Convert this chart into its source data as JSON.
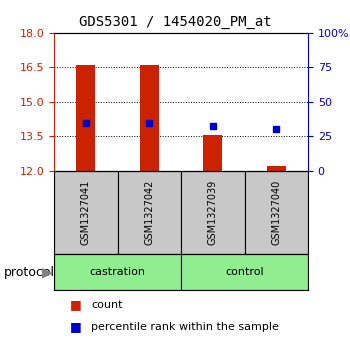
{
  "title": "GDS5301 / 1454020_PM_at",
  "samples": [
    "GSM1327041",
    "GSM1327042",
    "GSM1327039",
    "GSM1327040"
  ],
  "bar_color": "#CC2200",
  "dot_color": "#0000CC",
  "bar_values": [
    16.6,
    16.6,
    13.57,
    12.22
  ],
  "dot_values": [
    14.05,
    14.05,
    13.92,
    13.83
  ],
  "ylim_left": [
    12,
    18
  ],
  "yticks_left": [
    12,
    13.5,
    15,
    16.5,
    18
  ],
  "ylim_right": [
    0,
    100
  ],
  "yticks_right": [
    0,
    25,
    50,
    75,
    100
  ],
  "bar_width": 0.3,
  "legend_count_label": "count",
  "legend_pct_label": "percentile rank within the sample",
  "protocol_label": "protocol",
  "sample_box_color": "#C8C8C8",
  "group_box_color": "#90EE90",
  "group_spans": [
    [
      0,
      1,
      "castration"
    ],
    [
      2,
      3,
      "control"
    ]
  ]
}
